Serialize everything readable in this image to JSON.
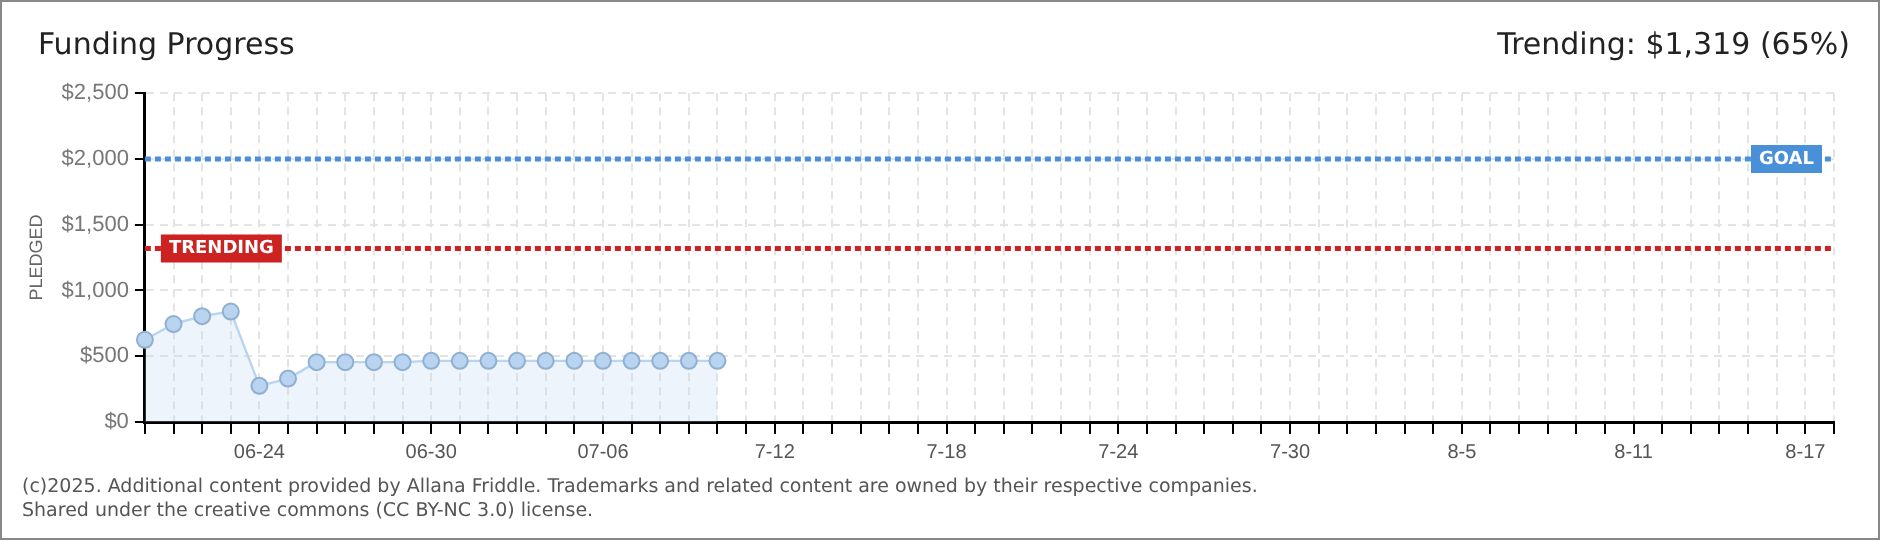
{
  "chart_data": {
    "type": "area",
    "title": "Funding Progress",
    "ylabel": "PLEDGED",
    "annotations": [
      "Trending: $1,319 (65%)",
      "(c)2025. Additional content provided by Allana Friddle. Trademarks and related content are owned by their respective companies.",
      "Shared under the creative commons (CC BY-NC 3.0) license."
    ],
    "categories": [
      null,
      null,
      null,
      null,
      "06-24",
      null,
      null,
      null,
      null,
      null,
      "06-30",
      null,
      null,
      null,
      null,
      null,
      "07-06",
      null,
      null,
      null,
      null,
      null,
      "7-12",
      null,
      null,
      null,
      null,
      null,
      "7-18",
      null,
      null,
      null,
      null,
      null,
      "7-24",
      null,
      null,
      null,
      null,
      null,
      "7-30",
      null,
      null,
      null,
      null,
      null,
      "8-5",
      null,
      null,
      null,
      null,
      null,
      "8-11",
      null,
      null,
      null,
      null,
      null,
      "8-17",
      null
    ],
    "series": [
      {
        "color": "#b8d4f0",
        "values": [
          625,
          745,
          805,
          840,
          275,
          330,
          455,
          455,
          455,
          455,
          465,
          465,
          465,
          465,
          465,
          465,
          465,
          465,
          465,
          465,
          465,
          null,
          null,
          null,
          null,
          null,
          null,
          null,
          null,
          null,
          null,
          null,
          null,
          null,
          null,
          null,
          null,
          null,
          null,
          null,
          null,
          null,
          null,
          null,
          null,
          null,
          null,
          null,
          null,
          null,
          null,
          null,
          null,
          null,
          null,
          null,
          null,
          null,
          null,
          null
        ]
      }
    ],
    "ylim": [
      0,
      2500
    ],
    "yticks": [
      {
        "value": 0,
        "label": "$0"
      },
      {
        "value": 500,
        "label": "$500"
      },
      {
        "value": 1000,
        "label": "$1,000"
      },
      {
        "value": 1500,
        "label": "$1,500"
      },
      {
        "value": 2000,
        "label": "$2,000"
      },
      {
        "value": 2500,
        "label": "$2,500"
      }
    ],
    "ref_lines": [
      {
        "axis": "y",
        "value": 2000,
        "label": "GOAL",
        "color": "#4a90d9",
        "line_style": "dotted"
      },
      {
        "axis": "y",
        "value": 1319,
        "label": "TRENDING",
        "color": "#cc2222",
        "line_style": "dotted"
      }
    ],
    "grid": true,
    "legend": false,
    "marker": "circle",
    "line_style": "solid"
  }
}
